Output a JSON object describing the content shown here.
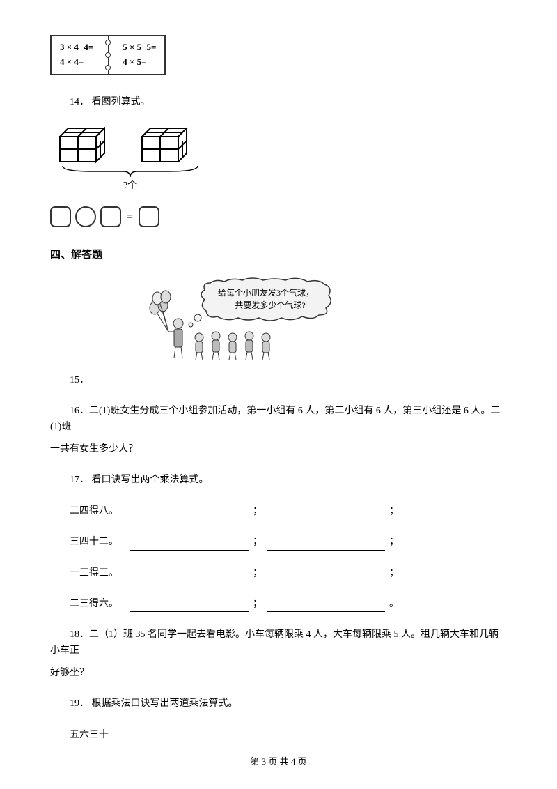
{
  "equation_box": {
    "left_line1": "3 × 4+4=",
    "left_line2": "4 × 4=",
    "right_line1": "5 × 5−5=",
    "right_line2": "4 × 5="
  },
  "q14": {
    "num": "14．",
    "text": "看图列算式。"
  },
  "cubes": {
    "brace_label": "?个"
  },
  "section4": "四、解答题",
  "cartoon": {
    "bubble_line1": "给每个小朋友发3个气球，",
    "bubble_line2": "一共要发多少个气球?"
  },
  "q15": {
    "num": "15．"
  },
  "q16": {
    "num": "16．",
    "text_a": "二(1)班女生分成三个小组参加活动，第一小组有 6 人，第二小组有 6 人，第三小组还是 6 人。二(1)班",
    "text_b": "一共有女生多少人？"
  },
  "q17": {
    "num": "17．",
    "text": "看口诀写出两个乘法算式。",
    "rows": [
      {
        "label": "二四得八。",
        "end1": "；",
        "end2": "；"
      },
      {
        "label": "三四十二。",
        "end1": "；",
        "end2": "；"
      },
      {
        "label": "一三得三。",
        "end1": "；",
        "end2": "；"
      },
      {
        "label": "二三得六。",
        "end1": "；",
        "end2": "。"
      }
    ]
  },
  "q18": {
    "num": "18．",
    "text_a": "二（1）班 35 名同学一起去看电影。小车每辆限乘 4 人，大车每辆限乘 5 人。租几辆大车和几辆小车正",
    "text_b": "好够坐？"
  },
  "q19": {
    "num": "19．",
    "text": "根据乘法口诀写出两道乘法算式。",
    "sub": "五六三十"
  },
  "footer": {
    "text": "第 3 页 共 4 页"
  },
  "colors": {
    "text": "#000000",
    "background": "#ffffff",
    "border": "#333333"
  }
}
